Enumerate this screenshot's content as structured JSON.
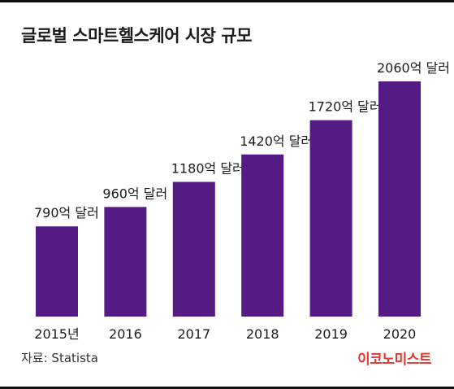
{
  "header": {
    "title": "글로벌 스마트헬스케어 시장 규모"
  },
  "footer": {
    "source": "자료: Statista",
    "brand": "이코노미스트"
  },
  "colors": {
    "bar": "#531b83",
    "brand": "#e5342b",
    "text": "#1a1a1a"
  },
  "chart_data": {
    "type": "bar",
    "title": "글로벌 스마트헬스케어 시장 규모",
    "categories": [
      "2015년",
      "2016",
      "2017",
      "2018",
      "2019",
      "2020"
    ],
    "values": [
      790,
      960,
      1180,
      1420,
      1720,
      2060
    ],
    "data_labels": [
      "790억 달러",
      "960억 달러",
      "1180억 달러",
      "1420억 달러",
      "1720억 달러",
      "2060억 달러"
    ],
    "unit": "억 달러",
    "xlabel": "",
    "ylabel": "",
    "ylim": [
      0,
      2060
    ],
    "grid": false,
    "legend": "none"
  }
}
